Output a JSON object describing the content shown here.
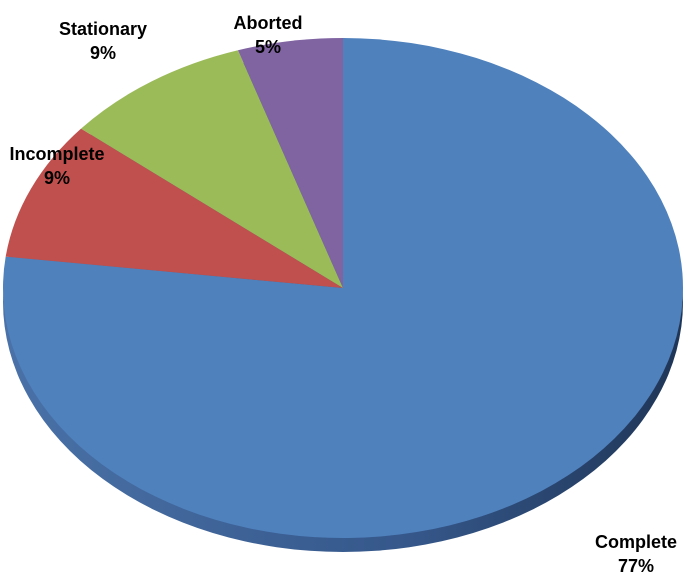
{
  "chart_data": {
    "type": "pie",
    "categories": [
      "Complete",
      "Incomplete",
      "Stationary",
      "Aborted"
    ],
    "values": [
      77,
      9,
      9,
      5
    ],
    "value_labels": [
      "77%",
      "9%",
      "9%",
      "5%"
    ],
    "colors": [
      "#4f81bd",
      "#c0504d",
      "#9bbb59",
      "#8064a2"
    ]
  }
}
